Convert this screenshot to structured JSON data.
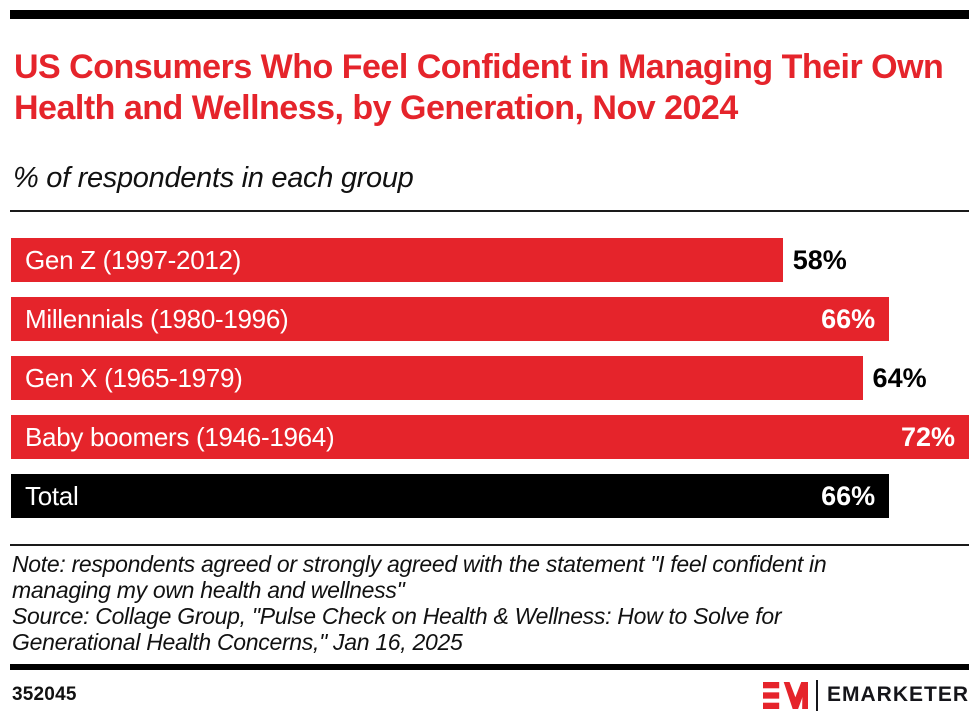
{
  "colors": {
    "brand_red": "#E5242B",
    "black": "#000000",
    "text": "#111111",
    "white_label": "#ffffff"
  },
  "header": {
    "title": "US Consumers Who Feel Confident in Managing Their Own Health and Wellness, by Generation, Nov 2024",
    "subtitle": "% of respondents in each group"
  },
  "chart_data": {
    "type": "bar",
    "orientation": "horizontal",
    "title": "US Consumers Who Feel Confident in Managing Their Own Health and Wellness, by Generation, Nov 2024",
    "subtitle": "% of respondents in each group",
    "unit": "%",
    "xlim": [
      0,
      72
    ],
    "grid": false,
    "legend": false,
    "categories": [
      "Gen Z (1997-2012)",
      "Millennials (1980-1996)",
      "Gen X (1965-1979)",
      "Baby boomers (1946-1964)",
      "Total"
    ],
    "values": [
      58,
      66,
      64,
      72,
      66
    ],
    "bar_colors": [
      "#E5242B",
      "#E5242B",
      "#E5242B",
      "#E5242B",
      "#000000"
    ],
    "value_label_positions": [
      "outside",
      "inside",
      "outside",
      "inside",
      "inside"
    ],
    "value_labels": [
      "58%",
      "66%",
      "64%",
      "72%",
      "66%"
    ]
  },
  "footnote": {
    "note": "Note: respondents agreed or strongly agreed with the statement \"I feel confident in managing my own health and wellness\"",
    "source": "Source: Collage Group, \"Pulse Check on Health & Wellness: How to Solve for Generational Health Concerns,\" Jan 16, 2025"
  },
  "footer": {
    "chart_id": "352045",
    "brand_mark": "EM",
    "brand_wordmark": "EMARKETER"
  }
}
